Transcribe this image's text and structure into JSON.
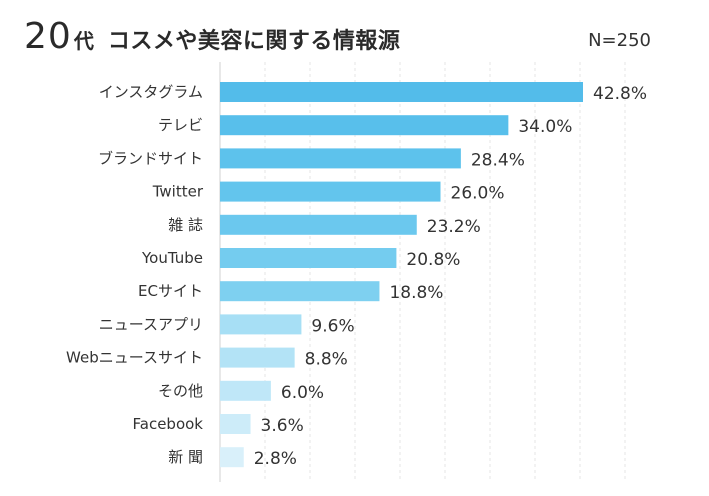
{
  "title": {
    "age": "20",
    "suffix": "代",
    "rest": "コスメや美容に関する情報源"
  },
  "sample_size": "N=250",
  "chart_data": {
    "type": "bar",
    "orientation": "horizontal",
    "title": "20代 コスメや美容に関する情報源",
    "categories": [
      "インスタグラム",
      "テレビ",
      "ブランドサイト",
      "Twitter",
      "雑 誌",
      "YouTube",
      "ECサイト",
      "ニュースアプリ",
      "Webニュースサイト",
      "その他",
      "Facebook",
      "新 聞"
    ],
    "values": [
      42.8,
      34.0,
      28.4,
      26.0,
      23.2,
      20.8,
      18.8,
      9.6,
      8.8,
      6.0,
      3.6,
      2.8
    ],
    "value_labels": [
      "42.8%",
      "34.0%",
      "28.4%",
      "26.0%",
      "23.2%",
      "20.8%",
      "18.8%",
      "9.6%",
      "8.8%",
      "6.0%",
      "3.6%",
      "2.8%"
    ],
    "unit": "%",
    "xlim": [
      0,
      45
    ],
    "grid": true,
    "bar_colors": [
      "#53bcea",
      "#58bfeb",
      "#5dc2ec",
      "#63c5ed",
      "#6bc8ee",
      "#74ccef",
      "#7ed0f0",
      "#a7dff5",
      "#b3e3f6",
      "#bfe7f8",
      "#cdecf9",
      "#d9f0fa"
    ]
  }
}
